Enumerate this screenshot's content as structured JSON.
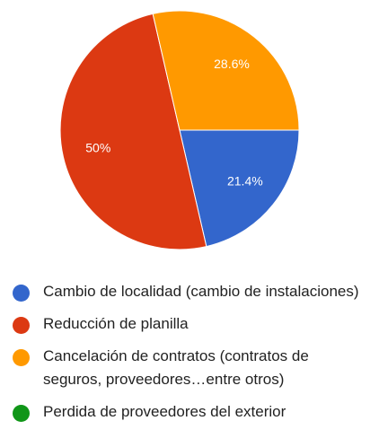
{
  "chart_data": {
    "type": "pie",
    "categories": [
      "Cambio de localidad (cambio de instalaciones)",
      "Reducción de planilla",
      "Cancelación de contratos (contratos de seguros, proveedores…entre otros)",
      "Perdida de proveedores del exterior"
    ],
    "values": [
      21.4,
      50,
      28.6,
      0
    ],
    "value_labels": [
      "21.4%",
      "50%",
      "28.6%",
      null
    ],
    "colors": [
      "#3366cc",
      "#dc3912",
      "#ff9900",
      "#109618"
    ]
  }
}
